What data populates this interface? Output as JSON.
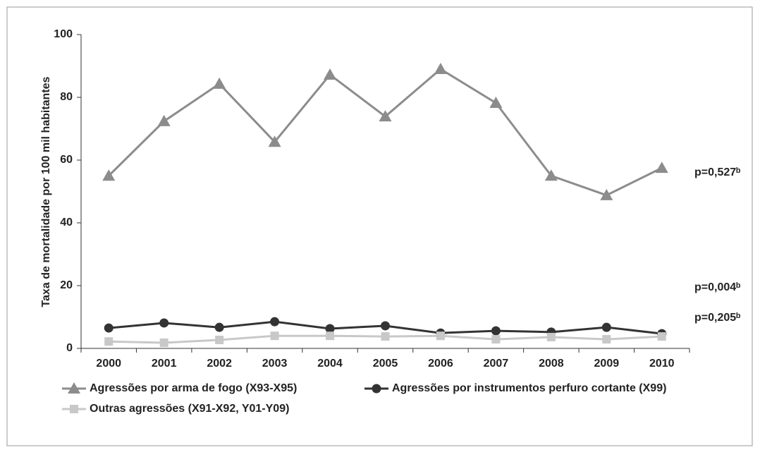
{
  "chart_data": {
    "type": "line",
    "ylabel": "Taxa de mortalidade por 100 mil habitantes",
    "categories": [
      "2000",
      "2001",
      "2002",
      "2003",
      "2004",
      "2005",
      "2006",
      "2007",
      "2008",
      "2009",
      "2010"
    ],
    "series": [
      {
        "name": "Agressões por arma de fogo (X93-X95)",
        "color": "#8c8c8c",
        "marker": "triangle",
        "values": [
          55,
          72.4,
          84.3,
          65.8,
          87.2,
          73.9,
          89,
          78.2,
          55,
          48.8,
          57.5
        ]
      },
      {
        "name": "Agressões por instrumentos perfuro cortante (X99)",
        "color": "#333333",
        "marker": "circle",
        "values": [
          6.5,
          8.1,
          6.7,
          8.5,
          6.3,
          7.2,
          4.9,
          5.6,
          5.2,
          6.7,
          4.7
        ]
      },
      {
        "name": "Outras agressões (X91-X92, Y01-Y09)",
        "color": "#c8c8c8",
        "marker": "square",
        "values": [
          2.2,
          1.8,
          2.7,
          4,
          4,
          3.8,
          4,
          2.9,
          3.6,
          2.9,
          3.8
        ]
      }
    ],
    "annotations": [
      "p=0,527ᵇ",
      "p=0,004ᵇ",
      "p=0,205ᵇ"
    ],
    "ylim": [
      0,
      100
    ],
    "yticks": [
      0,
      20,
      40,
      60,
      80,
      100
    ],
    "grid": false
  }
}
